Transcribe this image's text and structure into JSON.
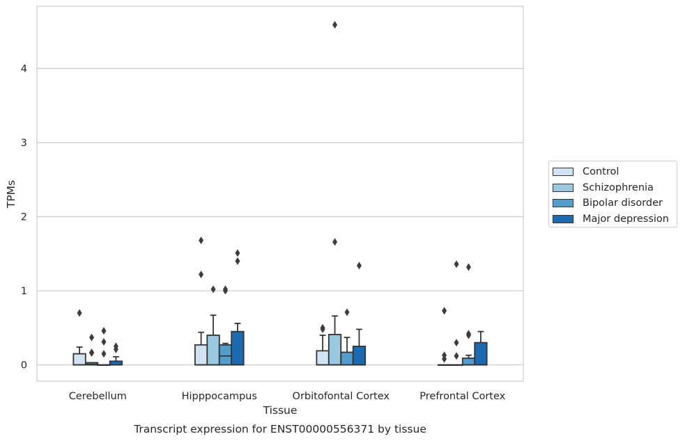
{
  "chart_data": {
    "type": "box",
    "xlabel": "Tissue",
    "ylabel": "TPMs",
    "caption": "Transcript expression for ENST00000556371 by tissue",
    "ylim": [
      -0.22,
      4.84
    ],
    "yticks": [
      0,
      1,
      2,
      3,
      4
    ],
    "grid": "horizontal",
    "legend_position": "right",
    "categories": [
      "Cerebellum",
      "Hipppocampus",
      "Orbitofontal Cortex",
      "Prefrontal Cortex"
    ],
    "series": [
      {
        "name": "Control",
        "color": "#d1e2f2",
        "boxes": [
          {
            "q1": 0.0,
            "median": 0.0,
            "q3": 0.15,
            "whisker_low": 0.0,
            "whisker_high": 0.24,
            "outliers": [
              0.7
            ]
          },
          {
            "q1": 0.0,
            "median": 0.0,
            "q3": 0.27,
            "whisker_low": 0.0,
            "whisker_high": 0.44,
            "outliers": [
              1.22,
              1.68
            ]
          },
          {
            "q1": 0.0,
            "median": 0.0,
            "q3": 0.19,
            "whisker_low": 0.0,
            "whisker_high": 0.4,
            "outliers": [
              0.48,
              0.5
            ]
          },
          {
            "q1": 0.0,
            "median": 0.0,
            "q3": 0.0,
            "whisker_low": 0.0,
            "whisker_high": 0.0,
            "outliers": [
              0.08,
              0.13,
              0.73
            ]
          }
        ]
      },
      {
        "name": "Schizophrenia",
        "color": "#9ac8e0",
        "boxes": [
          {
            "q1": 0.0,
            "median": 0.01,
            "q3": 0.03,
            "whisker_low": 0.0,
            "whisker_high": 0.03,
            "outliers": [
              0.16,
              0.17,
              0.37
            ]
          },
          {
            "q1": 0.0,
            "median": 0.0,
            "q3": 0.4,
            "whisker_low": 0.0,
            "whisker_high": 0.67,
            "outliers": [
              1.02
            ]
          },
          {
            "q1": 0.0,
            "median": 0.0,
            "q3": 0.41,
            "whisker_low": 0.0,
            "whisker_high": 0.66,
            "outliers": [
              1.66,
              4.59
            ]
          },
          {
            "q1": 0.0,
            "median": 0.0,
            "q3": 0.0,
            "whisker_low": 0.0,
            "whisker_high": 0.0,
            "outliers": [
              0.12,
              0.3,
              1.36
            ]
          }
        ]
      },
      {
        "name": "Bipolar disorder",
        "color": "#529dcc",
        "boxes": [
          {
            "q1": 0.0,
            "median": 0.0,
            "q3": 0.0,
            "whisker_low": 0.0,
            "whisker_high": 0.0,
            "outliers": [
              0.15,
              0.31,
              0.46
            ]
          },
          {
            "q1": 0.0,
            "median": 0.12,
            "q3": 0.27,
            "whisker_low": 0.0,
            "whisker_high": 0.29,
            "outliers": [
              1.0,
              1.02
            ]
          },
          {
            "q1": 0.0,
            "median": 0.0,
            "q3": 0.17,
            "whisker_low": 0.0,
            "whisker_high": 0.37,
            "outliers": [
              0.71
            ]
          },
          {
            "q1": 0.0,
            "median": 0.0,
            "q3": 0.09,
            "whisker_low": 0.0,
            "whisker_high": 0.13,
            "outliers": [
              0.4,
              0.42,
              1.32
            ]
          }
        ]
      },
      {
        "name": "Major depression",
        "color": "#1c6aaf",
        "boxes": [
          {
            "q1": 0.0,
            "median": 0.0,
            "q3": 0.05,
            "whisker_low": 0.0,
            "whisker_high": 0.11,
            "outliers": [
              0.21,
              0.25
            ]
          },
          {
            "q1": 0.0,
            "median": 0.0,
            "q3": 0.45,
            "whisker_low": 0.0,
            "whisker_high": 0.56,
            "outliers": [
              1.4,
              1.51
            ]
          },
          {
            "q1": 0.0,
            "median": 0.0,
            "q3": 0.25,
            "whisker_low": 0.0,
            "whisker_high": 0.48,
            "outliers": [
              1.34
            ]
          },
          {
            "q1": 0.0,
            "median": 0.0,
            "q3": 0.3,
            "whisker_low": 0.0,
            "whisker_high": 0.45,
            "outliers": []
          }
        ]
      }
    ]
  }
}
